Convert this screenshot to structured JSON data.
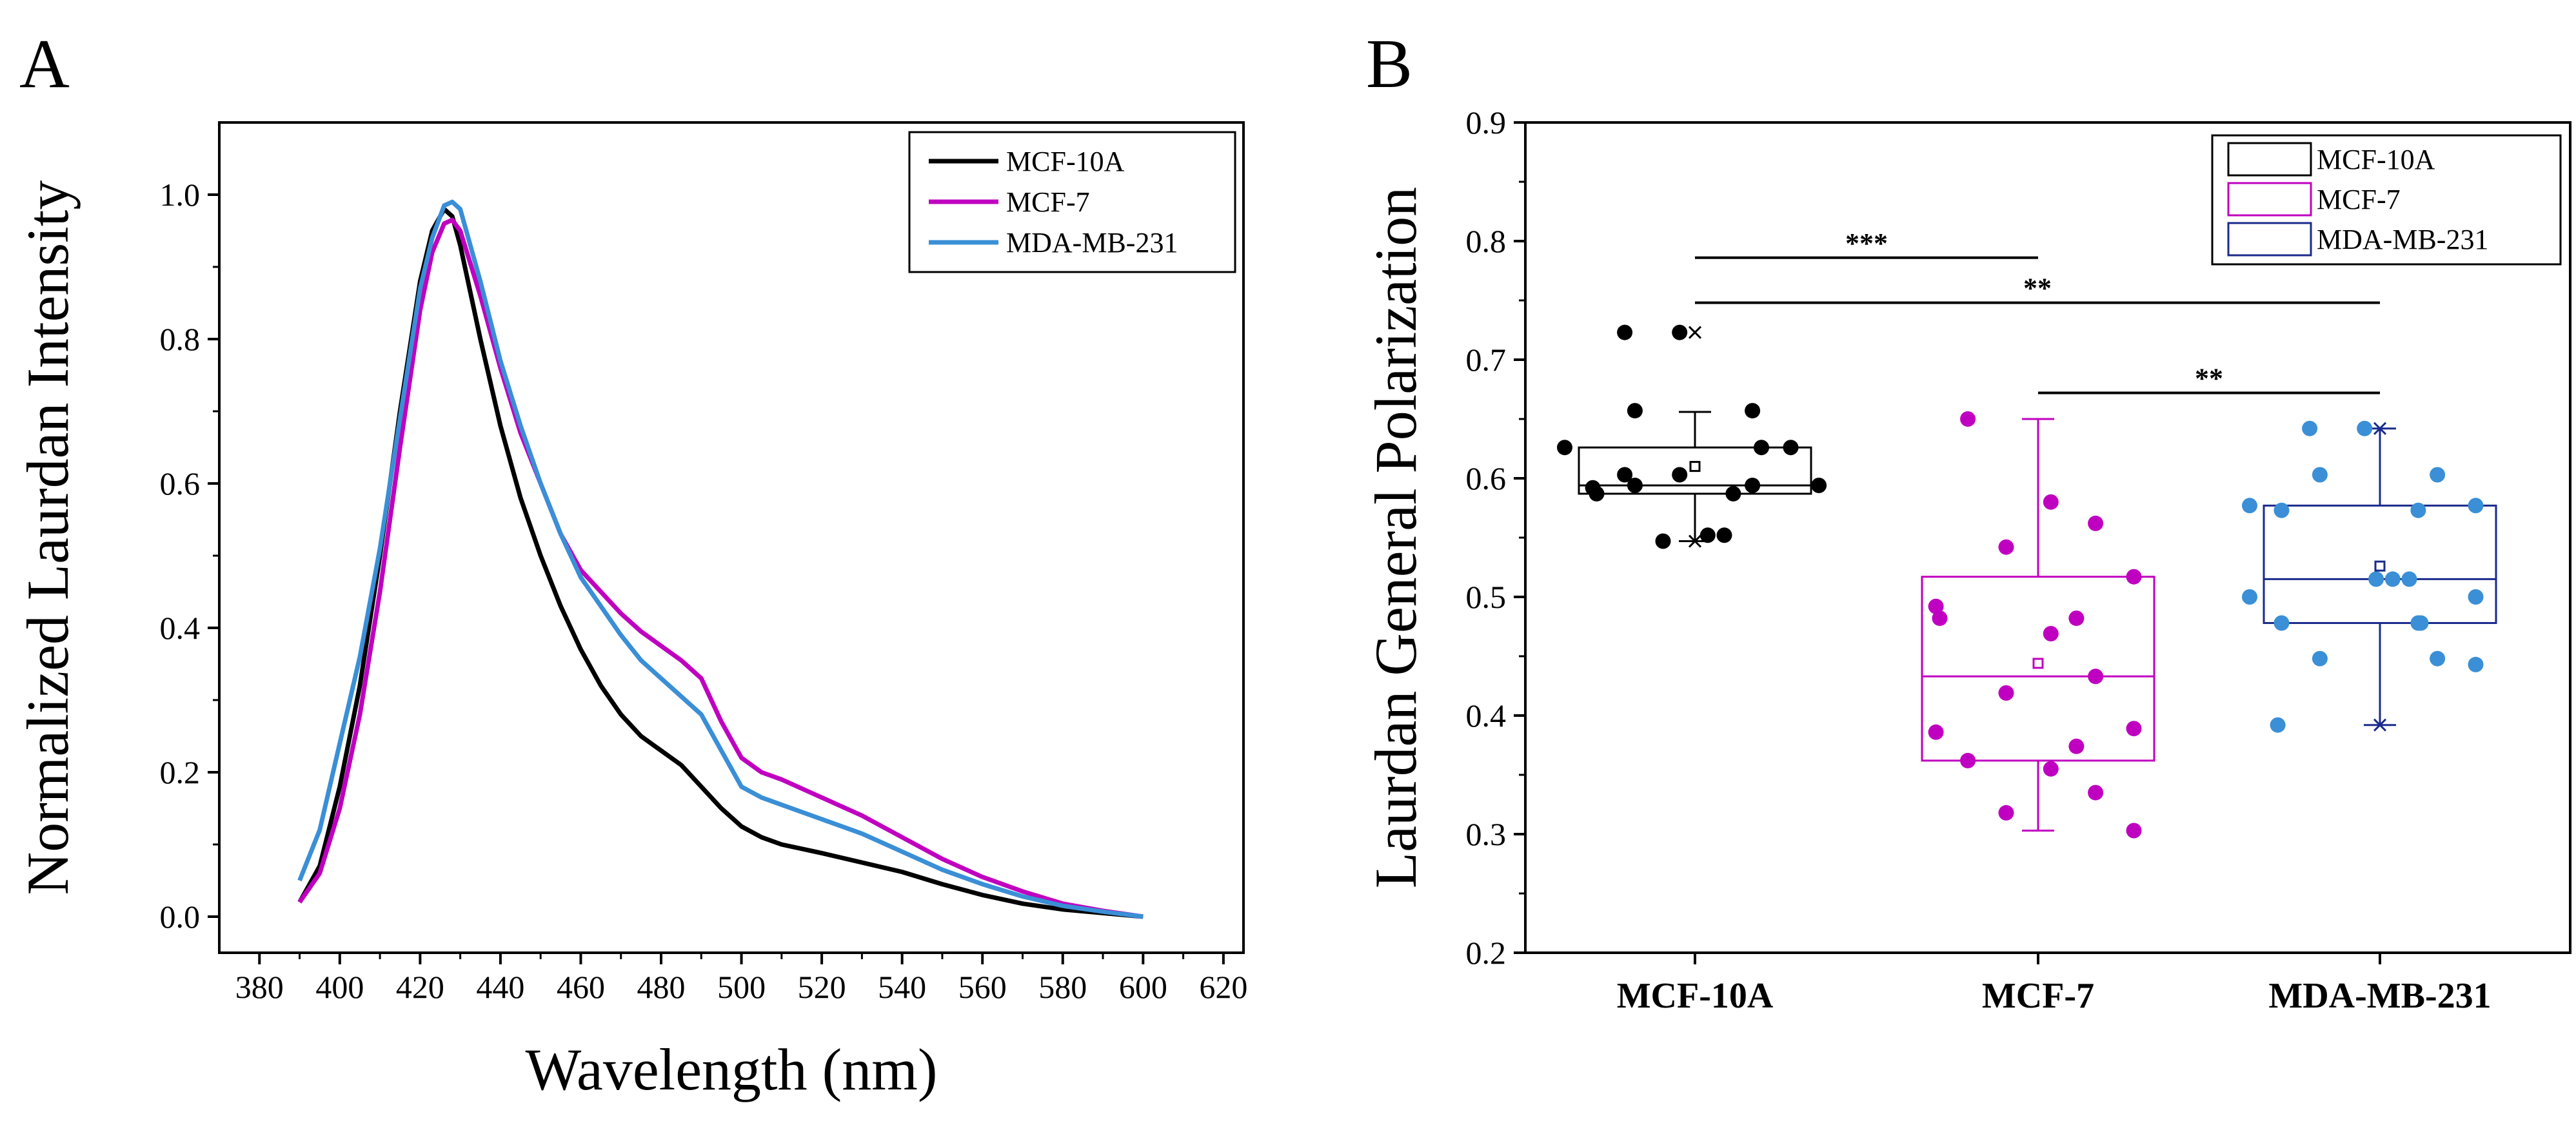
{
  "chart_data": [
    {
      "panel": "A",
      "type": "line",
      "xlabel": "Wavelength (nm)",
      "ylabel": "Normalized Laurdan Intensity",
      "xlim": [
        370,
        625
      ],
      "ylim": [
        -0.05,
        1.1
      ],
      "xticks": [
        "380",
        "400",
        "420",
        "440",
        "460",
        "480",
        "500",
        "520",
        "540",
        "560",
        "580",
        "600",
        "620"
      ],
      "yticks": [
        "0.0",
        "0.2",
        "0.4",
        "0.6",
        "0.8",
        "1.0"
      ],
      "legend_position": "top-right",
      "series": [
        {
          "name": "MCF-10A",
          "color": "#000000",
          "x": [
            390,
            395,
            400,
            405,
            410,
            415,
            420,
            423,
            426,
            428,
            430,
            435,
            440,
            445,
            450,
            455,
            460,
            465,
            470,
            475,
            480,
            485,
            490,
            495,
            500,
            505,
            510,
            520,
            530,
            540,
            550,
            560,
            570,
            580,
            590,
            600
          ],
          "y": [
            0.02,
            0.07,
            0.18,
            0.32,
            0.5,
            0.7,
            0.88,
            0.95,
            0.98,
            0.97,
            0.93,
            0.8,
            0.68,
            0.58,
            0.5,
            0.43,
            0.37,
            0.32,
            0.28,
            0.25,
            0.23,
            0.21,
            0.18,
            0.15,
            0.125,
            0.11,
            0.1,
            0.088,
            0.075,
            0.062,
            0.045,
            0.03,
            0.018,
            0.01,
            0.005,
            0.0
          ]
        },
        {
          "name": "MCF-7",
          "color": "#c000c0",
          "x": [
            390,
            395,
            400,
            405,
            410,
            415,
            420,
            423,
            426,
            428,
            430,
            435,
            440,
            445,
            450,
            455,
            460,
            465,
            470,
            475,
            480,
            485,
            490,
            495,
            500,
            505,
            510,
            520,
            530,
            540,
            550,
            560,
            570,
            580,
            590,
            600
          ],
          "y": [
            0.02,
            0.06,
            0.15,
            0.28,
            0.45,
            0.65,
            0.84,
            0.92,
            0.96,
            0.965,
            0.95,
            0.86,
            0.76,
            0.67,
            0.6,
            0.53,
            0.48,
            0.45,
            0.42,
            0.395,
            0.375,
            0.355,
            0.33,
            0.27,
            0.22,
            0.2,
            0.19,
            0.165,
            0.14,
            0.11,
            0.08,
            0.055,
            0.035,
            0.018,
            0.008,
            0.0
          ]
        },
        {
          "name": "MDA-MB-231",
          "color": "#3a8fd6",
          "x": [
            390,
            395,
            400,
            405,
            410,
            415,
            420,
            423,
            426,
            428,
            430,
            435,
            440,
            445,
            450,
            455,
            460,
            465,
            470,
            475,
            480,
            485,
            490,
            495,
            500,
            505,
            510,
            520,
            530,
            540,
            550,
            560,
            570,
            580,
            590,
            600
          ],
          "y": [
            0.05,
            0.12,
            0.24,
            0.36,
            0.51,
            0.69,
            0.87,
            0.94,
            0.985,
            0.99,
            0.98,
            0.88,
            0.77,
            0.68,
            0.6,
            0.53,
            0.47,
            0.43,
            0.39,
            0.355,
            0.33,
            0.305,
            0.28,
            0.23,
            0.18,
            0.165,
            0.155,
            0.135,
            0.115,
            0.09,
            0.065,
            0.045,
            0.028,
            0.015,
            0.007,
            0.0
          ]
        }
      ]
    },
    {
      "panel": "B",
      "type": "box",
      "xlabel": "",
      "ylabel": "Laurdan General Polarization",
      "ylim": [
        0.2,
        0.9
      ],
      "yticks": [
        "0.2",
        "0.3",
        "0.4",
        "0.5",
        "0.6",
        "0.7",
        "0.8",
        "0.9"
      ],
      "categories": [
        "MCF-10A",
        "MCF-7",
        "MDA-MB-231"
      ],
      "legend_position": "top-right",
      "series": [
        {
          "name": "MCF-10A",
          "color": "#000000",
          "q1": 0.587,
          "median": 0.594,
          "q3": 0.626,
          "mean": 0.61,
          "whisker_low": 0.547,
          "whisker_high": 0.656,
          "extremes": [
            0.547,
            0.723
          ],
          "points": [
            0.723,
            0.723,
            0.657,
            0.657,
            0.626,
            0.626,
            0.626,
            0.603,
            0.603,
            0.594,
            0.594,
            0.594,
            0.592,
            0.587,
            0.587,
            0.552,
            0.552,
            0.547
          ]
        },
        {
          "name": "MCF-7",
          "color": "#c000c0",
          "q1": 0.362,
          "median": 0.433,
          "q3": 0.517,
          "mean": 0.444,
          "whisker_low": 0.303,
          "whisker_high": 0.65,
          "extremes": [],
          "points": [
            0.65,
            0.58,
            0.562,
            0.542,
            0.517,
            0.492,
            0.482,
            0.482,
            0.469,
            0.433,
            0.419,
            0.389,
            0.386,
            0.374,
            0.362,
            0.355,
            0.335,
            0.318,
            0.303
          ]
        },
        {
          "name": "MDA-MB-231",
          "color": "#3a8fd6",
          "box_color": "#1a2a8c",
          "q1": 0.478,
          "median": 0.515,
          "q3": 0.577,
          "mean": 0.526,
          "whisker_low": 0.392,
          "whisker_high": 0.642,
          "extremes": [
            0.392,
            0.642
          ],
          "points": [
            0.642,
            0.642,
            0.603,
            0.603,
            0.577,
            0.577,
            0.573,
            0.573,
            0.515,
            0.515,
            0.515,
            0.5,
            0.5,
            0.478,
            0.478,
            0.478,
            0.448,
            0.448,
            0.443,
            0.392
          ]
        }
      ],
      "significance": [
        {
          "from": "MCF-10A",
          "to": "MCF-7",
          "label": "***",
          "y": 0.786
        },
        {
          "from": "MCF-10A",
          "to": "MDA-MB-231",
          "label": "**",
          "y": 0.748
        },
        {
          "from": "MCF-7",
          "to": "MDA-MB-231",
          "label": "**",
          "y": 0.672
        }
      ]
    }
  ]
}
